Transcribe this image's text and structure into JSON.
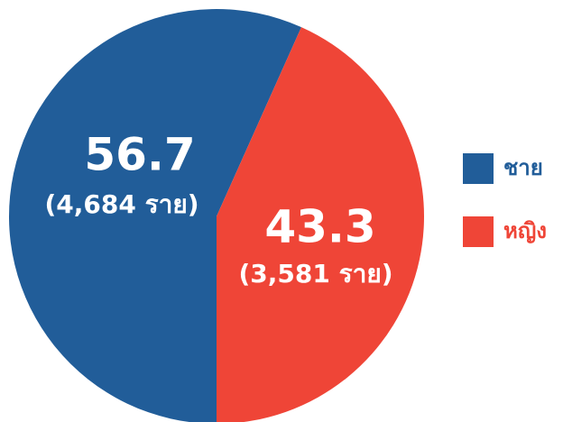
{
  "chart_data": {
    "type": "pie",
    "series": [
      {
        "name": "ชาย",
        "color": "#215d99",
        "values": [
          56.7
        ],
        "value_labels": [
          "(4,684 ราย)"
        ]
      },
      {
        "name": "หญิง",
        "color": "#ef4537",
        "values": [
          43.3
        ],
        "value_labels": [
          "(3,581 ราย)"
        ]
      }
    ],
    "legend": "right"
  }
}
